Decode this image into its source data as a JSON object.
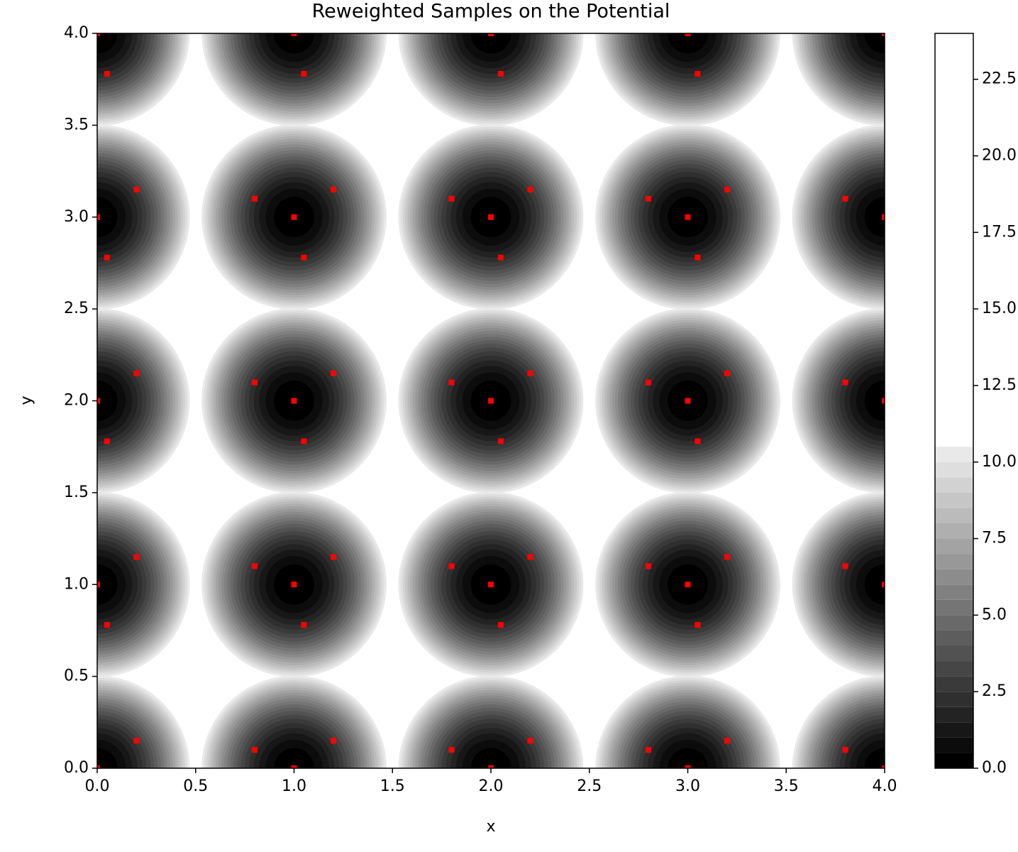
{
  "chart_data": {
    "type": "scatter_on_contour",
    "title": "Reweighted Samples on the Potential",
    "x_label": "x",
    "y_label": "y",
    "xlim": [
      0,
      4
    ],
    "ylim": [
      0,
      4
    ],
    "xticks": [
      {
        "value": 0,
        "label": "0.0"
      },
      {
        "value": 0.5,
        "label": "0.5"
      },
      {
        "value": 1,
        "label": "1.0"
      },
      {
        "value": 1.5,
        "label": "1.5"
      },
      {
        "value": 2,
        "label": "2.0"
      },
      {
        "value": 2.5,
        "label": "2.5"
      },
      {
        "value": 3,
        "label": "3.0"
      },
      {
        "value": 3.5,
        "label": "3.5"
      },
      {
        "value": 4,
        "label": "4.0"
      }
    ],
    "yticks": [
      {
        "value": 0,
        "label": "0.0"
      },
      {
        "value": 0.5,
        "label": "0.5"
      },
      {
        "value": 1,
        "label": "1.0"
      },
      {
        "value": 1.5,
        "label": "1.5"
      },
      {
        "value": 2,
        "label": "2.0"
      },
      {
        "value": 2.5,
        "label": "2.5"
      },
      {
        "value": 3,
        "label": "3.0"
      },
      {
        "value": 3.5,
        "label": "3.5"
      },
      {
        "value": 4,
        "label": "4.0"
      }
    ],
    "wells": {
      "x": [
        0,
        1,
        2,
        3,
        4
      ],
      "y": [
        0,
        1,
        2,
        3,
        4
      ]
    },
    "levels": [
      0,
      0.5,
      1,
      1.5,
      2,
      2.5,
      3,
      3.5,
      4,
      4.5,
      5,
      5.5,
      6,
      6.5,
      7,
      7.5,
      8,
      8.5,
      9,
      9.5,
      10,
      10.5
    ],
    "colorbar": {
      "clim": [
        0,
        24
      ],
      "ticks": [
        {
          "value": 0,
          "label": "0.0"
        },
        {
          "value": 2.5,
          "label": "2.5"
        },
        {
          "value": 5,
          "label": "5.0"
        },
        {
          "value": 7.5,
          "label": "7.5"
        },
        {
          "value": 10,
          "label": "10.0"
        },
        {
          "value": 12.5,
          "label": "12.5"
        },
        {
          "value": 15,
          "label": "15.0"
        },
        {
          "value": 17.5,
          "label": "17.5"
        },
        {
          "value": 20,
          "label": "20.0"
        },
        {
          "value": 22.5,
          "label": "22.5"
        }
      ]
    },
    "samples": {
      "color": "#ff0000",
      "x": [
        0,
        0.2,
        1,
        1.2,
        0.8,
        2,
        2.2,
        1.8,
        3,
        3.2,
        2.8,
        4,
        3.8,
        0,
        0.2,
        0.05,
        1,
        1.2,
        0.8,
        1.05,
        2,
        2.2,
        1.8,
        2.05,
        3,
        3.2,
        2.8,
        3.05,
        4,
        3.8,
        0,
        0.2,
        0.05,
        1,
        1.2,
        0.8,
        1.05,
        2,
        2.2,
        1.8,
        2.05,
        3,
        3.2,
        2.8,
        3.05,
        4,
        3.8,
        0,
        0.2,
        0.05,
        1,
        1.2,
        0.8,
        1.05,
        2,
        2.2,
        1.8,
        2.05,
        3,
        3.2,
        2.8,
        3.05,
        4,
        3.8,
        0,
        0.05,
        1,
        1.05,
        2,
        2.05,
        3,
        3.05,
        4
      ],
      "y": [
        0,
        0.15,
        0,
        0.15,
        0.1,
        0,
        0.15,
        0.1,
        0,
        0.15,
        0.1,
        0,
        0.1,
        1,
        1.15,
        0.78,
        1,
        1.15,
        1.1,
        0.78,
        1,
        1.15,
        1.1,
        0.78,
        1,
        1.15,
        1.1,
        0.78,
        1,
        1.1,
        2,
        2.15,
        1.78,
        2,
        2.15,
        2.1,
        1.78,
        2,
        2.15,
        2.1,
        1.78,
        2,
        2.15,
        2.1,
        1.78,
        2,
        2.1,
        3,
        3.15,
        2.78,
        3,
        3.15,
        3.1,
        2.78,
        3,
        3.15,
        3.1,
        2.78,
        3,
        3.15,
        3.1,
        2.78,
        3,
        3.1,
        4,
        3.78,
        4,
        3.78,
        4,
        3.78,
        4,
        3.78,
        4
      ]
    }
  }
}
